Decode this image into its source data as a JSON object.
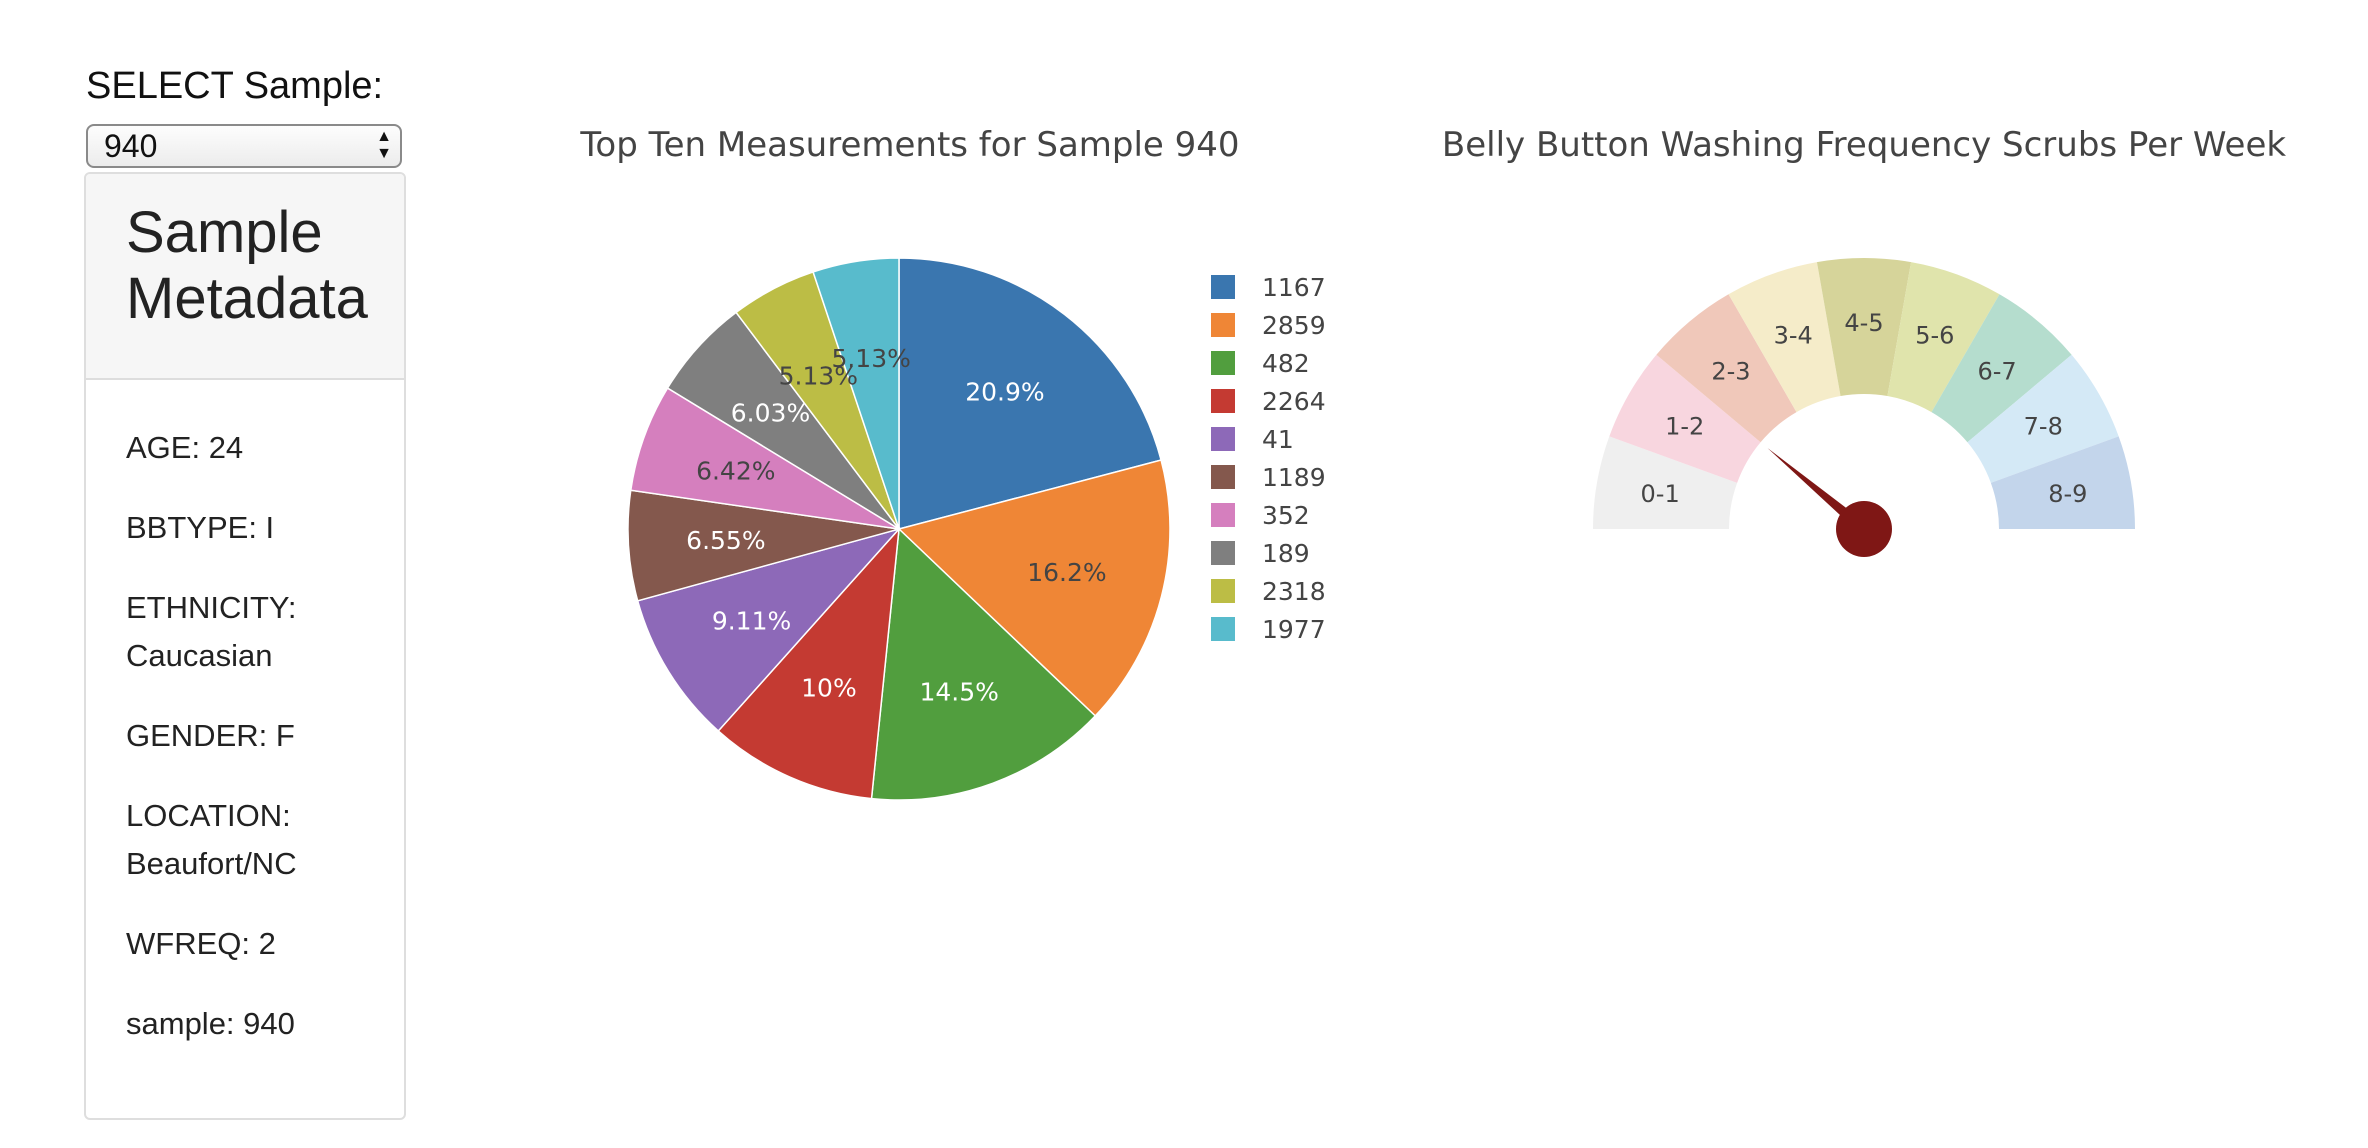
{
  "selector": {
    "label": "SELECT Sample:",
    "value": "940"
  },
  "metadata": {
    "title": "Sample Metadata",
    "items": [
      "AGE: 24",
      "BBTYPE: I",
      "ETHNICITY: Caucasian",
      "GENDER: F",
      "LOCATION: Beaufort/NC",
      "WFREQ: 2",
      "sample: 940"
    ]
  },
  "chart_data": [
    {
      "type": "pie",
      "title": "Top Ten Measurements for Sample 940",
      "labels": [
        "1167",
        "2859",
        "482",
        "2264",
        "41",
        "1189",
        "352",
        "189",
        "2318",
        "1977"
      ],
      "values": [
        20.9,
        16.2,
        14.5,
        10,
        9.11,
        6.55,
        6.42,
        6.03,
        5.13,
        5.13
      ],
      "text_labels": [
        "20.9%",
        "16.2%",
        "14.5%",
        "10%",
        "9.11%",
        "6.55%",
        "6.42%",
        "6.03%",
        "5.13%",
        "5.13%"
      ],
      "colors": [
        "#3a76af",
        "#ef8636",
        "#519e3e",
        "#c43a32",
        "#8d69b8",
        "#84584d",
        "#d57fbe",
        "#7f7f7f",
        "#bcbd45",
        "#58bbcc"
      ],
      "label_dark": [
        false,
        true,
        false,
        false,
        false,
        false,
        true,
        false,
        true,
        true
      ],
      "legend_position": "right"
    },
    {
      "type": "gauge",
      "title": "Belly Button Washing Frequency Scrubs Per Week",
      "segments": [
        "0-1",
        "1-2",
        "2-3",
        "3-4",
        "4-5",
        "5-6",
        "6-7",
        "7-8",
        "8-9"
      ],
      "colors": [
        "#efefef",
        "#f8d6df",
        "#f0c8ba",
        "#f5ecc9",
        "#d6d49a",
        "#e0e4ac",
        "#b5ddce",
        "#d4e9f6",
        "#c3d5eb"
      ],
      "range": [
        0,
        9
      ],
      "value": 2,
      "needle_color": "#7f1715"
    }
  ]
}
